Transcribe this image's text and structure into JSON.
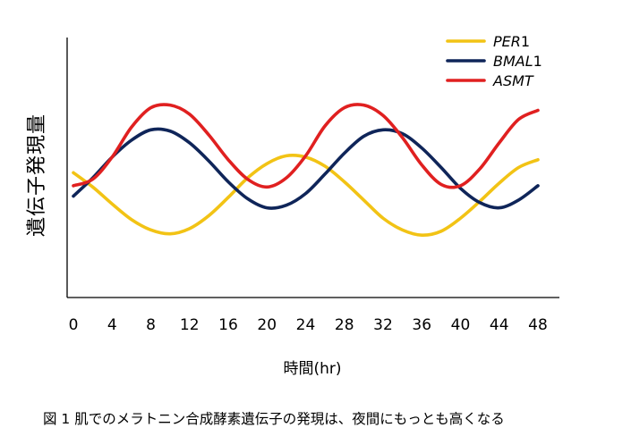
{
  "chart_data": {
    "type": "line",
    "ylabel": "遺伝子発現量",
    "xlabel": "時間(hr)",
    "caption": "図 1 肌でのメラトニン合成酵素遺伝子の発現は、夜間にもっとも高くなる",
    "xticks": [
      0,
      4,
      8,
      12,
      16,
      20,
      24,
      28,
      32,
      36,
      40,
      44,
      48
    ],
    "xlim": [
      0,
      48
    ],
    "ylim": [
      0,
      10
    ],
    "grid": false,
    "legend_position": "top-right",
    "series": [
      {
        "name": "PER1",
        "name_italic": "PER",
        "name_suffix": "1",
        "color": "#f2c315",
        "x": [
          0,
          2,
          4,
          6,
          8,
          10,
          12,
          14,
          16,
          18,
          20,
          22,
          24,
          26,
          28,
          30,
          32,
          34,
          36,
          38,
          40,
          42,
          44,
          46,
          48
        ],
        "y": [
          4.8,
          4.25,
          3.6,
          3.0,
          2.6,
          2.45,
          2.65,
          3.15,
          3.85,
          4.6,
          5.15,
          5.45,
          5.4,
          5.05,
          4.45,
          3.75,
          3.05,
          2.6,
          2.4,
          2.55,
          3.05,
          3.7,
          4.4,
          5.0,
          5.3
        ]
      },
      {
        "name": "BMAL1",
        "name_italic": "BMAL",
        "name_suffix": "1",
        "color": "#0f2559",
        "x": [
          0,
          2,
          4,
          6,
          8,
          10,
          12,
          14,
          16,
          18,
          20,
          22,
          24,
          26,
          28,
          30,
          32,
          34,
          36,
          38,
          40,
          42,
          44,
          46,
          48
        ],
        "y": [
          3.9,
          4.6,
          5.4,
          6.05,
          6.45,
          6.4,
          5.95,
          5.25,
          4.45,
          3.8,
          3.45,
          3.55,
          4.0,
          4.75,
          5.55,
          6.2,
          6.45,
          6.3,
          5.75,
          5.0,
          4.2,
          3.65,
          3.45,
          3.75,
          4.3
        ]
      },
      {
        "name": "ASMT",
        "name_italic": "ASMT",
        "name_suffix": "",
        "color": "#e02020",
        "x": [
          0,
          2,
          4,
          6,
          8,
          10,
          12,
          14,
          16,
          18,
          20,
          22,
          24,
          26,
          28,
          30,
          32,
          34,
          36,
          38,
          40,
          42,
          44,
          46,
          48
        ],
        "y": [
          4.3,
          4.55,
          5.4,
          6.55,
          7.3,
          7.4,
          7.05,
          6.25,
          5.3,
          4.55,
          4.25,
          4.6,
          5.45,
          6.6,
          7.3,
          7.4,
          7.0,
          6.15,
          5.1,
          4.35,
          4.3,
          4.95,
          5.95,
          6.85,
          7.2
        ]
      }
    ]
  }
}
